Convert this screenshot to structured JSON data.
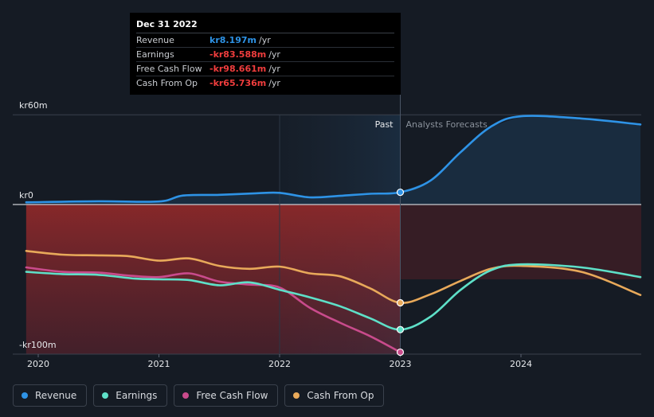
{
  "tooltip": {
    "date": "Dec 31 2022",
    "rows": [
      {
        "label": "Revenue",
        "value": "kr8.197m",
        "unit": "/yr",
        "color": "#2e93e6"
      },
      {
        "label": "Earnings",
        "value": "-kr83.588m",
        "unit": "/yr",
        "color": "#f03d3d"
      },
      {
        "label": "Free Cash Flow",
        "value": "-kr98.661m",
        "unit": "/yr",
        "color": "#f03d3d"
      },
      {
        "label": "Cash From Op",
        "value": "-kr65.736m",
        "unit": "/yr",
        "color": "#f03d3d"
      }
    ]
  },
  "legend": [
    {
      "label": "Revenue",
      "color": "#2e93e6"
    },
    {
      "label": "Earnings",
      "color": "#5ee0c8"
    },
    {
      "label": "Free Cash Flow",
      "color": "#c94b8c"
    },
    {
      "label": "Cash From Op",
      "color": "#e8a95a"
    }
  ],
  "chart_data": {
    "type": "line",
    "title": "",
    "xlabel": "",
    "ylabel": "",
    "ylim": [
      -100,
      60
    ],
    "xlim": [
      2019.9,
      2024.99
    ],
    "y_tick_labels": [
      {
        "value": 60,
        "label": "kr60m"
      },
      {
        "value": 0,
        "label": "kr0"
      },
      {
        "value": -100,
        "label": "-kr100m"
      }
    ],
    "x_ticks": [
      {
        "value": 2020,
        "label": "2020"
      },
      {
        "value": 2021,
        "label": "2021"
      },
      {
        "value": 2022,
        "label": "2022"
      },
      {
        "value": 2023,
        "label": "2023"
      },
      {
        "value": 2024,
        "label": "2024"
      }
    ],
    "past_label": "Past",
    "forecast_label": "Analysts Forecasts",
    "divider_x": 2023,
    "highlight_start_x": 2022,
    "series": [
      {
        "name": "Revenue",
        "color": "#2e93e6",
        "points": [
          [
            2019.9,
            1.5
          ],
          [
            2020.5,
            2.2
          ],
          [
            2021,
            2.0
          ],
          [
            2021.2,
            6.0
          ],
          [
            2021.5,
            6.5
          ],
          [
            2021.8,
            7.5
          ],
          [
            2022,
            7.8
          ],
          [
            2022.25,
            4.8
          ],
          [
            2022.5,
            5.8
          ],
          [
            2022.75,
            7.2
          ],
          [
            2023,
            8.2
          ],
          [
            2023.25,
            16
          ],
          [
            2023.5,
            35
          ],
          [
            2023.75,
            52
          ],
          [
            2024,
            59
          ],
          [
            2024.5,
            57.5
          ],
          [
            2024.99,
            53.5
          ]
        ],
        "marker_at": 2023
      },
      {
        "name": "Earnings",
        "color": "#5ee0c8",
        "points": [
          [
            2019.9,
            -45
          ],
          [
            2020.2,
            -46.5
          ],
          [
            2020.5,
            -47
          ],
          [
            2020.8,
            -49.5
          ],
          [
            2021.0,
            -50.0
          ],
          [
            2021.25,
            -50.5
          ],
          [
            2021.5,
            -54
          ],
          [
            2021.75,
            -52
          ],
          [
            2022,
            -57
          ],
          [
            2022.25,
            -62
          ],
          [
            2022.5,
            -68
          ],
          [
            2022.75,
            -76
          ],
          [
            2023,
            -83.6
          ],
          [
            2023.25,
            -75
          ],
          [
            2023.5,
            -57
          ],
          [
            2023.75,
            -44
          ],
          [
            2024,
            -40
          ],
          [
            2024.5,
            -42
          ],
          [
            2024.99,
            -48.5
          ]
        ],
        "marker_at": 2023
      },
      {
        "name": "Free Cash Flow",
        "color": "#c94b8c",
        "points": [
          [
            2019.9,
            -42
          ],
          [
            2020.2,
            -45
          ],
          [
            2020.5,
            -45.5
          ],
          [
            2020.75,
            -47.5
          ],
          [
            2021.0,
            -48.5
          ],
          [
            2021.25,
            -46
          ],
          [
            2021.5,
            -51.5
          ],
          [
            2021.75,
            -53.5
          ],
          [
            2022,
            -55.5
          ],
          [
            2022.25,
            -69
          ],
          [
            2022.5,
            -79
          ],
          [
            2022.75,
            -88
          ],
          [
            2023,
            -98.7
          ]
        ],
        "marker_at": 2023
      },
      {
        "name": "Cash From Op",
        "color": "#e8a95a",
        "points": [
          [
            2019.9,
            -31
          ],
          [
            2020.2,
            -33.5
          ],
          [
            2020.5,
            -34
          ],
          [
            2020.75,
            -34.5
          ],
          [
            2021.0,
            -37.5
          ],
          [
            2021.25,
            -36
          ],
          [
            2021.5,
            -41
          ],
          [
            2021.75,
            -43
          ],
          [
            2022,
            -41.5
          ],
          [
            2022.25,
            -46
          ],
          [
            2022.5,
            -48
          ],
          [
            2022.75,
            -56
          ],
          [
            2023,
            -65.7
          ],
          [
            2023.25,
            -60
          ],
          [
            2023.5,
            -51
          ],
          [
            2023.75,
            -43
          ],
          [
            2024,
            -41
          ],
          [
            2024.5,
            -45
          ],
          [
            2024.99,
            -60.5
          ]
        ],
        "marker_at": 2023
      }
    ]
  }
}
